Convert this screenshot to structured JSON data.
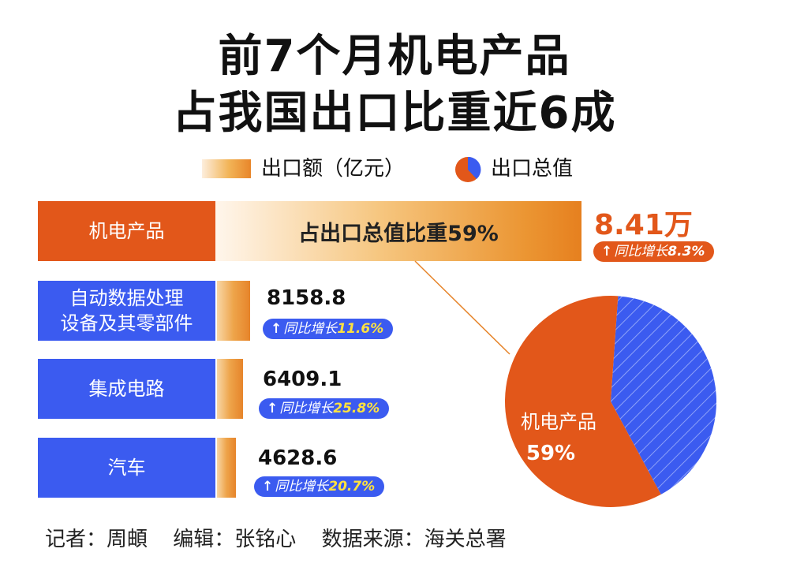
{
  "title_line1": "前7个月机电产品",
  "title_line2": "占我国出口比重近6成",
  "legend": {
    "bar_label": "出口额（亿元）",
    "pie_label": "出口总值"
  },
  "main": {
    "label": "机电产品",
    "bar_text": "占出口总值比重59%",
    "value": "8.41万",
    "growth_prefix": "同比增长",
    "growth_pct": "8.3%"
  },
  "rows": [
    {
      "label_line1": "自动数据处理",
      "label_line2": "设备及其零部件",
      "value": "8158.8",
      "growth_prefix": "同比增长",
      "growth_pct": "11.6%"
    },
    {
      "label_line1": "集成电路",
      "label_line2": "",
      "value": "6409.1",
      "growth_prefix": "同比增长",
      "growth_pct": "25.8%"
    },
    {
      "label_line1": "汽车",
      "label_line2": "",
      "value": "4628.6",
      "growth_prefix": "同比增长",
      "growth_pct": "20.7%"
    }
  ],
  "pie": {
    "slice_label": "机电产品",
    "slice_pct": "59%"
  },
  "footer": {
    "reporter": "记者：周頔",
    "editor": "编辑：张铭心",
    "source": "数据来源：海关总署"
  },
  "colors": {
    "orange": "#e2571a",
    "blue": "#3b5bf0",
    "highlight": "#ffe23f"
  },
  "chart_data": {
    "type": "bar",
    "categories": [
      "机电产品",
      "自动数据处理设备及其零部件",
      "集成电路",
      "汽车"
    ],
    "values": [
      84100,
      8158.8,
      6409.1,
      4628.6
    ],
    "growth_percent": [
      8.3,
      11.6,
      25.8,
      20.7
    ],
    "pie": {
      "type": "pie",
      "slices": [
        {
          "label": "机电产品",
          "value": 59
        },
        {
          "label": "",
          "value": 41
        }
      ]
    }
  }
}
